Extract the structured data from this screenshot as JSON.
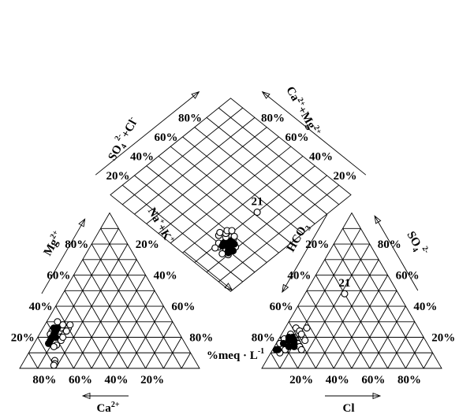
{
  "chart_data": {
    "type": "scatter",
    "diagram": "piper",
    "ticks": [
      "20%",
      "40%",
      "60%",
      "80%"
    ],
    "unit_label": "%meq · L",
    "unit_superscript": "-1",
    "labels": {
      "ca": {
        "base": "Ca",
        "sup": "2+"
      },
      "mg": {
        "base": "Mg",
        "sup": "2+"
      },
      "nak": {
        "base": "Na",
        "sup": "+",
        "mid": "+K",
        "sup2": "+"
      },
      "cl": {
        "base": "Cl",
        "sup": ""
      },
      "so4": {
        "base": "SO",
        "sub": "4",
        "sup": "2-"
      },
      "hco3": {
        "base": "HCO",
        "sub": "3",
        "sup": ""
      },
      "so4cl": {
        "base": "SO",
        "sub": "4",
        "sup": "2-",
        "mid": "+Cl",
        "sup2": "-"
      },
      "camg": {
        "base": "Ca",
        "sup": "2+",
        "mid": "+Mg",
        "sup2": "2+"
      }
    },
    "annotation": "21",
    "cation_open": [
      [
        0.7,
        0.2
      ],
      [
        0.72,
        0.15
      ],
      [
        0.68,
        0.22
      ],
      [
        0.66,
        0.24
      ],
      [
        0.64,
        0.26
      ],
      [
        0.7,
        0.24
      ],
      [
        0.62,
        0.28
      ],
      [
        0.68,
        0.18
      ],
      [
        0.72,
        0.22
      ],
      [
        0.66,
        0.2
      ],
      [
        0.6,
        0.26
      ],
      [
        0.74,
        0.14
      ],
      [
        0.62,
        0.24
      ],
      [
        0.78,
        0.05
      ],
      [
        0.79,
        0.03
      ],
      [
        0.8,
        0.02
      ],
      [
        0.58,
        0.28
      ],
      [
        0.64,
        0.3
      ]
    ],
    "cation_filled": [
      [
        0.74,
        0.18
      ],
      [
        0.72,
        0.2
      ],
      [
        0.7,
        0.22
      ],
      [
        0.68,
        0.24
      ],
      [
        0.66,
        0.26
      ],
      [
        0.7,
        0.2
      ],
      [
        0.76,
        0.16
      ],
      [
        0.68,
        0.26
      ]
    ],
    "anion_open": [
      [
        0.05,
        0.22
      ],
      [
        0.08,
        0.2
      ],
      [
        0.1,
        0.18
      ],
      [
        0.12,
        0.16
      ],
      [
        0.14,
        0.14
      ],
      [
        0.06,
        0.26
      ],
      [
        0.09,
        0.24
      ],
      [
        0.04,
        0.14
      ],
      [
        0.07,
        0.12
      ],
      [
        0.13,
        0.2
      ],
      [
        0.11,
        0.22
      ],
      [
        0.03,
        0.19
      ],
      [
        0.15,
        0.18
      ],
      [
        0.16,
        0.12
      ],
      [
        0.02,
        0.16
      ],
      [
        0.12,
        0.26
      ],
      [
        0.05,
        0.1
      ]
    ],
    "anion_filled": [
      [
        0.04,
        0.16
      ],
      [
        0.06,
        0.18
      ],
      [
        0.08,
        0.14
      ],
      [
        0.1,
        0.16
      ],
      [
        0.07,
        0.2
      ],
      [
        0.03,
        0.12
      ],
      [
        0.09,
        0.18
      ],
      [
        0.05,
        0.2
      ],
      [
        0.11,
        0.14
      ],
      [
        0.02,
        0.12
      ]
    ],
    "sample21_anion": [
      0.22,
      0.48
    ],
    "sample21_diamond": [
      0.3,
      0.52
    ],
    "diamond_open": [
      [
        0.26,
        0.22
      ],
      [
        0.28,
        0.24
      ],
      [
        0.3,
        0.26
      ],
      [
        0.24,
        0.2
      ],
      [
        0.32,
        0.28
      ],
      [
        0.26,
        0.28
      ],
      [
        0.28,
        0.18
      ],
      [
        0.22,
        0.22
      ],
      [
        0.3,
        0.2
      ],
      [
        0.34,
        0.24
      ],
      [
        0.24,
        0.26
      ],
      [
        0.27,
        0.3
      ],
      [
        0.2,
        0.18
      ],
      [
        0.33,
        0.3
      ],
      [
        0.29,
        0.16
      ],
      [
        0.31,
        0.32
      ],
      [
        0.23,
        0.16
      ],
      [
        0.35,
        0.26
      ],
      [
        0.21,
        0.25
      ]
    ],
    "diamond_filled": [
      [
        0.24,
        0.24
      ],
      [
        0.26,
        0.26
      ],
      [
        0.22,
        0.2
      ],
      [
        0.28,
        0.22
      ],
      [
        0.25,
        0.22
      ],
      [
        0.2,
        0.22
      ],
      [
        0.23,
        0.26
      ],
      [
        0.27,
        0.2
      ],
      [
        0.21,
        0.19
      ],
      [
        0.26,
        0.24
      ]
    ]
  }
}
